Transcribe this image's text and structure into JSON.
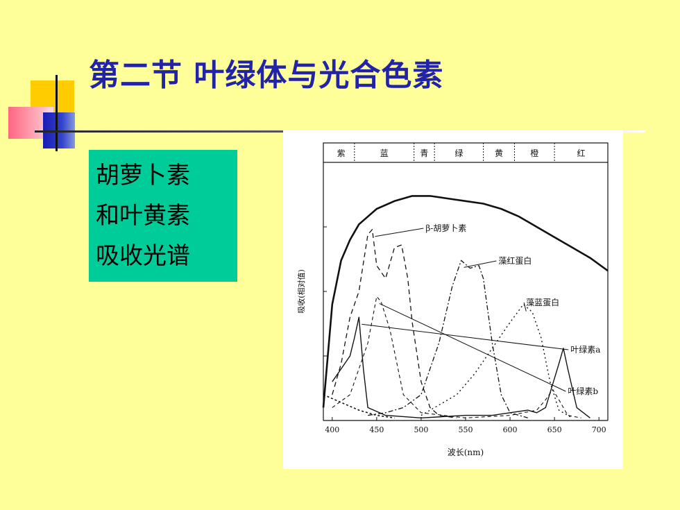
{
  "slide": {
    "title": "第二节 叶绿体与光合色素",
    "box_lines": [
      "胡萝卜素",
      "和叶黄素",
      "吸收光谱"
    ]
  },
  "chart_data": {
    "type": "line",
    "xlabel": "波长(nm)",
    "ylabel": "吸收(相对值)",
    "xlim": [
      390,
      710
    ],
    "ticks": [
      400,
      450,
      500,
      550,
      600,
      650,
      700
    ],
    "color_bands": [
      {
        "label": "紫",
        "from": 395,
        "to": 425
      },
      {
        "label": "蓝",
        "from": 425,
        "to": 492
      },
      {
        "label": "青",
        "from": 492,
        "to": 515
      },
      {
        "label": "绿",
        "from": 515,
        "to": 570
      },
      {
        "label": "黄",
        "from": 570,
        "to": 605
      },
      {
        "label": "橙",
        "from": 605,
        "to": 650
      },
      {
        "label": "红",
        "from": 650,
        "to": 710
      }
    ],
    "series": [
      {
        "name": "",
        "style": "solid",
        "points": [
          [
            390,
            0.05
          ],
          [
            400,
            0.45
          ],
          [
            410,
            0.62
          ],
          [
            420,
            0.7
          ],
          [
            430,
            0.76
          ],
          [
            450,
            0.82
          ],
          [
            470,
            0.85
          ],
          [
            490,
            0.87
          ],
          [
            510,
            0.87
          ],
          [
            530,
            0.86
          ],
          [
            550,
            0.85
          ],
          [
            570,
            0.84
          ],
          [
            590,
            0.82
          ],
          [
            610,
            0.79
          ],
          [
            630,
            0.75
          ],
          [
            650,
            0.71
          ],
          [
            670,
            0.67
          ],
          [
            690,
            0.63
          ],
          [
            710,
            0.58
          ]
        ]
      },
      {
        "name": "β-胡萝卜素",
        "style": "dashed",
        "points": [
          [
            400,
            0.1
          ],
          [
            410,
            0.22
          ],
          [
            420,
            0.4
          ],
          [
            430,
            0.5
          ],
          [
            440,
            0.72
          ],
          [
            445,
            0.74
          ],
          [
            450,
            0.6
          ],
          [
            460,
            0.55
          ],
          [
            470,
            0.67
          ],
          [
            478,
            0.68
          ],
          [
            485,
            0.55
          ],
          [
            490,
            0.38
          ],
          [
            500,
            0.15
          ],
          [
            510,
            0.05
          ],
          [
            520,
            0.02
          ],
          [
            540,
            0.01
          ]
        ]
      },
      {
        "name": "藻红蛋白",
        "style": "dashdot",
        "points": [
          [
            440,
            0.02
          ],
          [
            460,
            0.03
          ],
          [
            480,
            0.05
          ],
          [
            500,
            0.1
          ],
          [
            520,
            0.3
          ],
          [
            535,
            0.52
          ],
          [
            545,
            0.62
          ],
          [
            555,
            0.59
          ],
          [
            565,
            0.6
          ],
          [
            570,
            0.55
          ],
          [
            580,
            0.3
          ],
          [
            590,
            0.1
          ],
          [
            600,
            0.03
          ],
          [
            620,
            0.01
          ]
        ]
      },
      {
        "name": "藻蓝蛋白",
        "style": "dotted",
        "points": [
          [
            500,
            0.02
          ],
          [
            520,
            0.06
          ],
          [
            540,
            0.1
          ],
          [
            560,
            0.18
          ],
          [
            580,
            0.28
          ],
          [
            600,
            0.38
          ],
          [
            615,
            0.45
          ],
          [
            625,
            0.42
          ],
          [
            635,
            0.32
          ],
          [
            645,
            0.15
          ],
          [
            655,
            0.04
          ],
          [
            670,
            0.01
          ]
        ]
      },
      {
        "name": "叶绿素a",
        "style": "thin-solid",
        "points": [
          [
            400,
            0.15
          ],
          [
            410,
            0.2
          ],
          [
            420,
            0.25
          ],
          [
            425,
            0.32
          ],
          [
            430,
            0.4
          ],
          [
            435,
            0.2
          ],
          [
            440,
            0.05
          ],
          [
            460,
            0.02
          ],
          [
            500,
            0.01
          ],
          [
            550,
            0.02
          ],
          [
            580,
            0.02
          ],
          [
            600,
            0.03
          ],
          [
            620,
            0.04
          ],
          [
            630,
            0.03
          ],
          [
            640,
            0.05
          ],
          [
            655,
            0.22
          ],
          [
            660,
            0.28
          ],
          [
            665,
            0.2
          ],
          [
            675,
            0.05
          ],
          [
            690,
            0.01
          ]
        ]
      },
      {
        "name": "叶绿素b",
        "style": "dashed-thin",
        "points": [
          [
            400,
            0.05
          ],
          [
            420,
            0.1
          ],
          [
            440,
            0.3
          ],
          [
            450,
            0.48
          ],
          [
            455,
            0.46
          ],
          [
            465,
            0.35
          ],
          [
            480,
            0.1
          ],
          [
            500,
            0.03
          ],
          [
            550,
            0.01
          ],
          [
            600,
            0.02
          ],
          [
            630,
            0.04
          ],
          [
            640,
            0.08
          ],
          [
            648,
            0.12
          ],
          [
            655,
            0.08
          ],
          [
            665,
            0.02
          ],
          [
            680,
            0.01
          ]
        ]
      },
      {
        "name": "",
        "style": "dotted-dark",
        "points": [
          [
            390,
            0.1
          ],
          [
            410,
            0.07
          ],
          [
            430,
            0.04
          ],
          [
            450,
            0.02
          ],
          [
            470,
            0.01
          ]
        ]
      }
    ]
  }
}
